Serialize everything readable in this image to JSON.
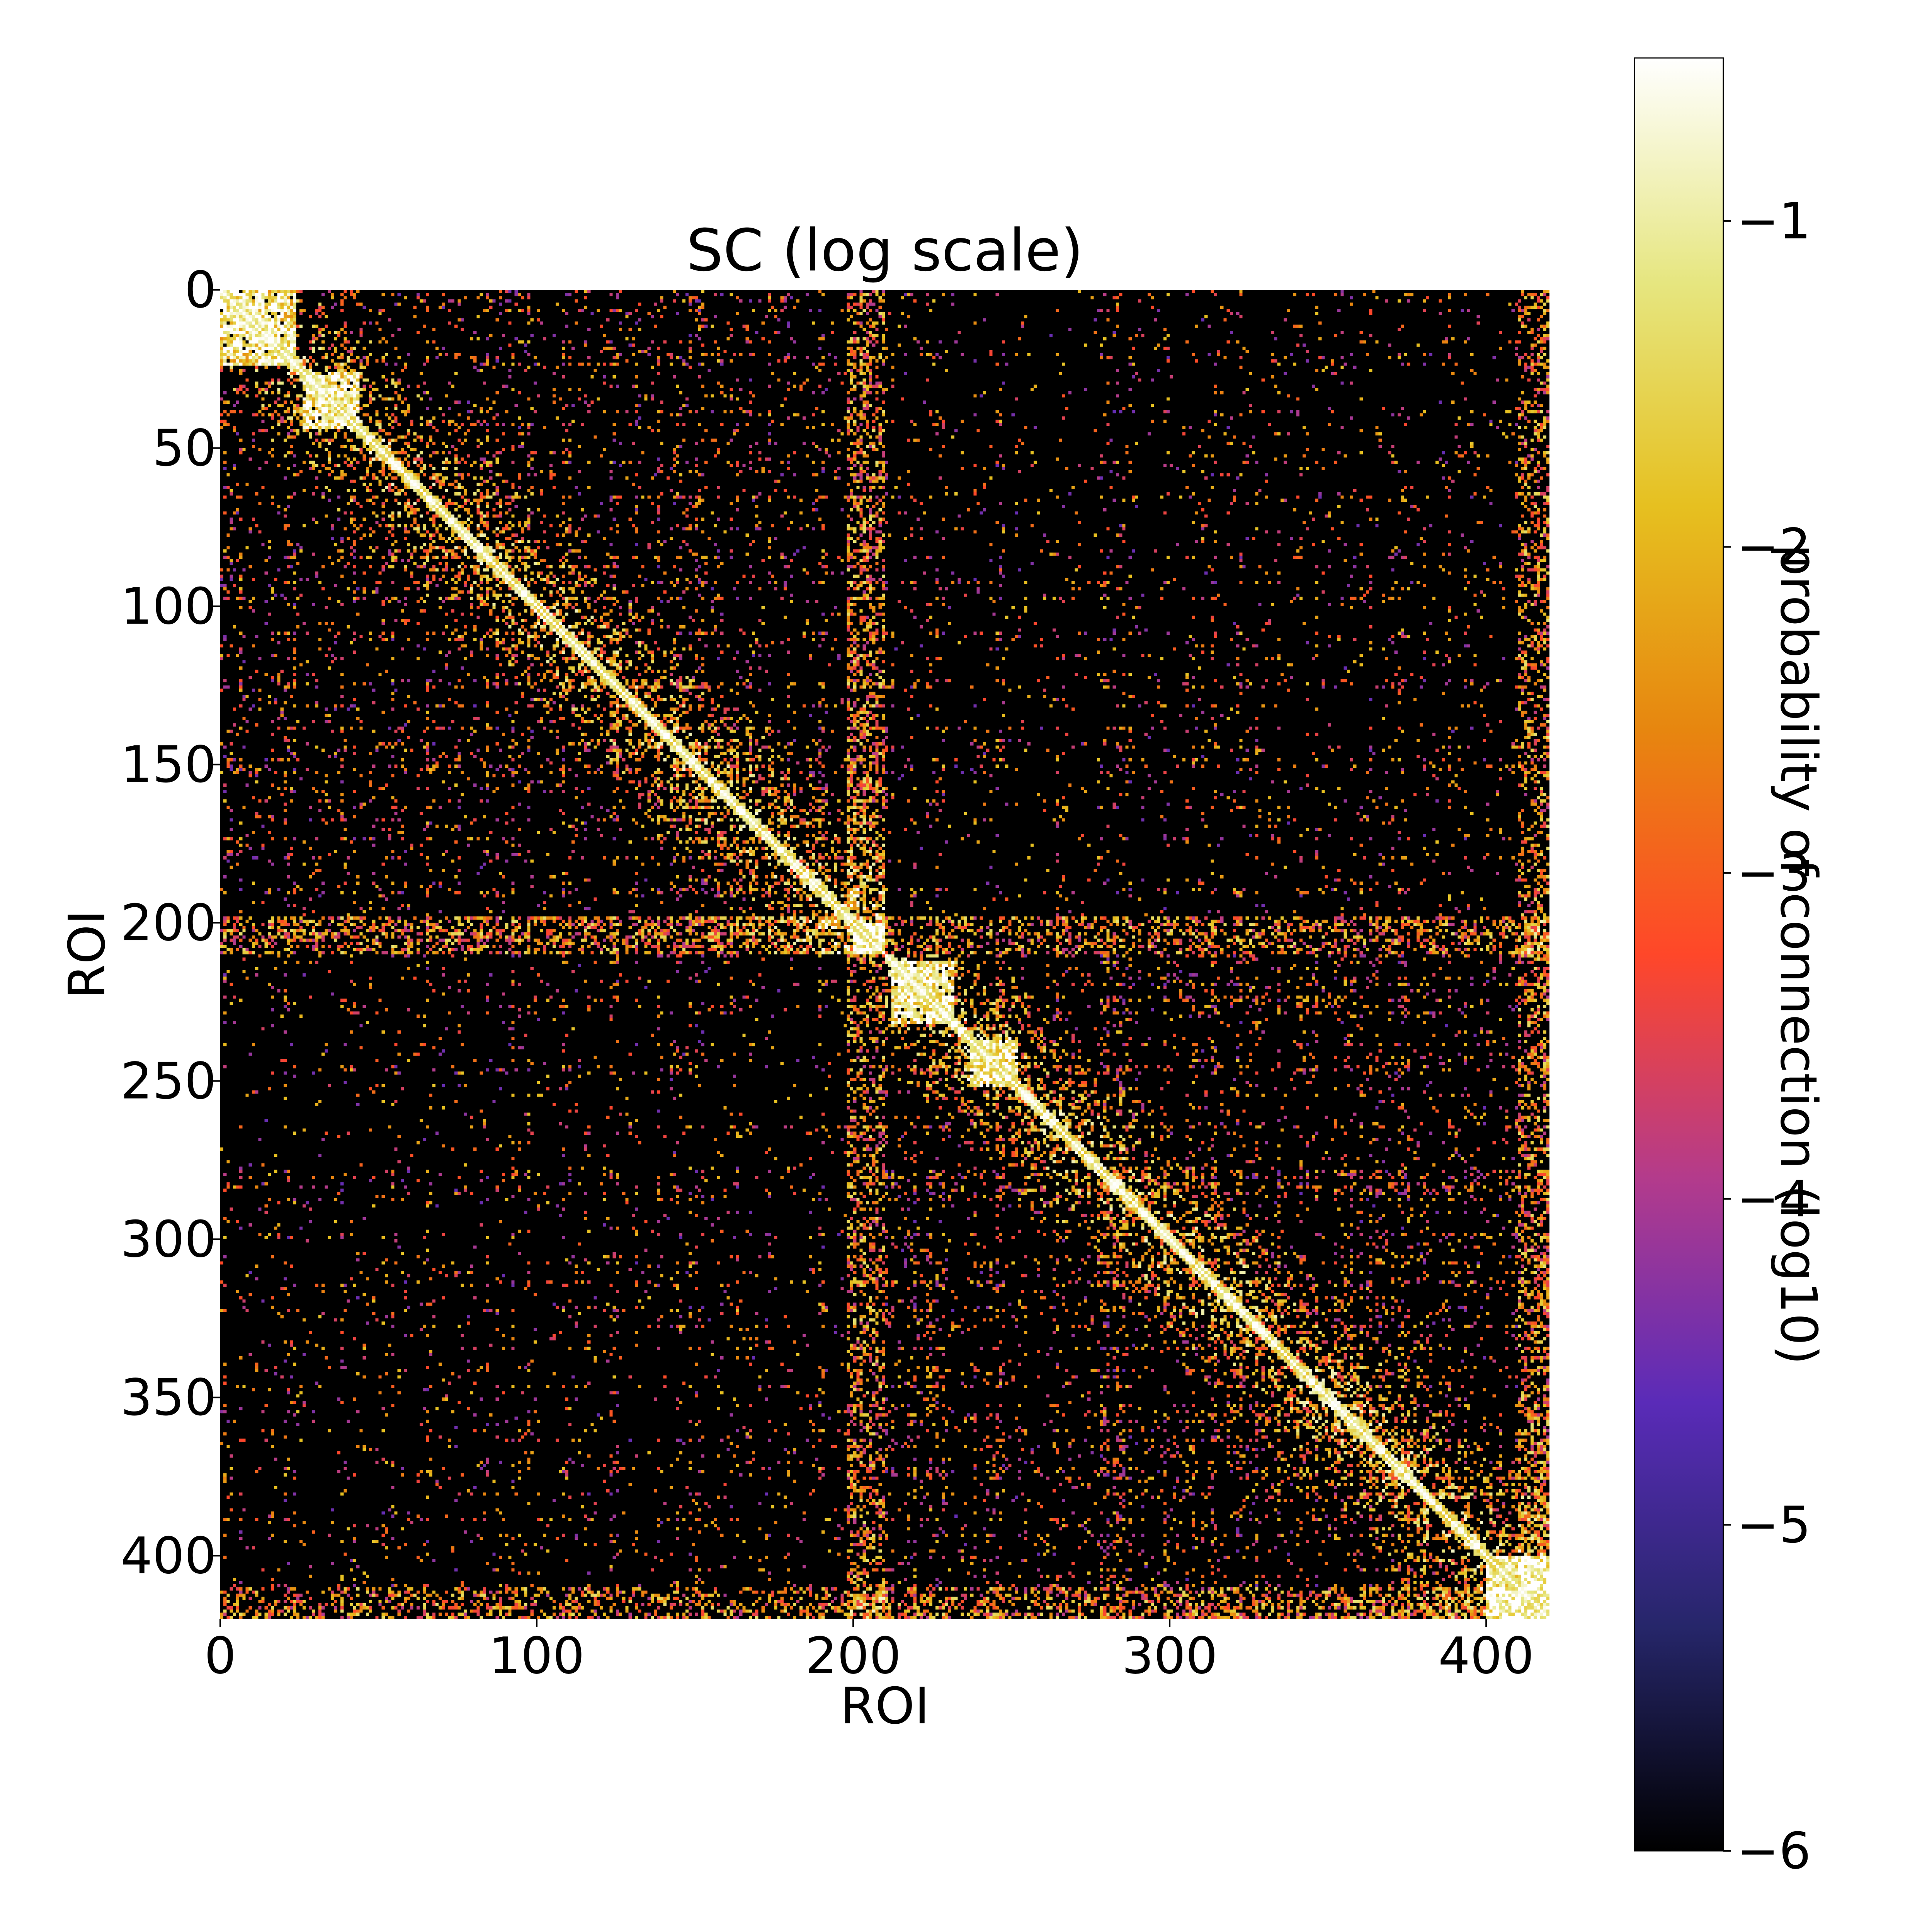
{
  "chart_data": {
    "type": "heatmap",
    "title": "SC (log scale)",
    "xlabel": "ROI",
    "ylabel": "ROI",
    "n": 420,
    "xlim": [
      0,
      420
    ],
    "ylim": [
      420,
      0
    ],
    "x_ticks": [
      0,
      100,
      200,
      300,
      400
    ],
    "y_ticks": [
      0,
      50,
      100,
      150,
      200,
      250,
      300,
      350,
      400
    ],
    "x_tick_labels": [
      "0",
      "100",
      "200",
      "300",
      "400"
    ],
    "y_tick_labels": [
      "0",
      "50",
      "100",
      "150",
      "200",
      "250",
      "300",
      "350",
      "400"
    ],
    "colorbar": {
      "label": "probability of connection (log10)",
      "range": [
        -6,
        -0.5
      ],
      "ticks": [
        -6,
        -5,
        -4,
        -3,
        -2,
        -1
      ],
      "tick_labels": [
        "−6",
        "−5",
        "−4",
        "−3",
        "−2",
        "−1"
      ],
      "colormap": "CMRmap",
      "stops": [
        "#000000",
        "#26266a",
        "#5a2bb8",
        "#b33b8c",
        "#ff4729",
        "#e7860f",
        "#e6c020",
        "#e6e680",
        "#ffffff"
      ]
    },
    "structure": {
      "hemisphere_split": 210,
      "diagonal_blocks": [
        [
          0,
          24
        ],
        [
          26,
          44
        ],
        [
          200,
          210
        ],
        [
          212,
          232
        ],
        [
          236,
          252
        ],
        [
          400,
          420
        ]
      ],
      "subcortical_bands": [
        [
          198,
          210
        ],
        [
          410,
          420
        ]
      ]
    },
    "grid": false,
    "legend": "none"
  }
}
